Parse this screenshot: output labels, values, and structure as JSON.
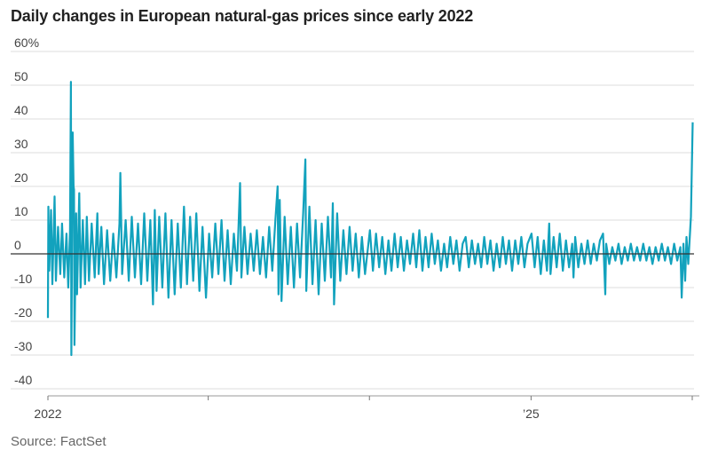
{
  "header": {
    "title": "Daily changes in European natural-gas prices since early 2022"
  },
  "footer": {
    "source": "Source: FactSet"
  },
  "colors": {
    "line": "#12a2bd",
    "grid": "#dcdcdc",
    "zero": "#333333",
    "text": "#444444"
  },
  "chart_data": {
    "type": "line",
    "title": "Daily changes in European natural-gas prices since early 2022",
    "xlabel": "",
    "ylabel": "",
    "ylim": [
      -40,
      60
    ],
    "y_ticks": [
      -40,
      -30,
      -20,
      -10,
      0,
      10,
      20,
      30,
      40,
      50,
      60
    ],
    "y_tick_labels": [
      "-40",
      "-30",
      "-20",
      "-10",
      "0",
      "10",
      "20",
      "30",
      "40",
      "50",
      "60%"
    ],
    "x_tick_labels": [
      {
        "label": "2022",
        "date": "2022-01-03"
      },
      {
        "label": "’25",
        "date": "2025-01-01"
      }
    ],
    "xlim": [
      "2022-01-03",
      "2026-01-05"
    ],
    "x_tick_marks": [
      "2022-01-03",
      "2023-01-01",
      "2024-01-01",
      "2025-01-01",
      "2026-01-01"
    ],
    "grid": true,
    "series": [
      {
        "values_note_unit": "percent",
        "points": [
          [
            "2022-01-03",
            -19
          ],
          [
            "2022-01-04",
            14
          ],
          [
            "2022-01-06",
            -5
          ],
          [
            "2022-01-10",
            13
          ],
          [
            "2022-01-13",
            -9
          ],
          [
            "2022-01-18",
            17
          ],
          [
            "2022-01-21",
            -8
          ],
          [
            "2022-01-26",
            8
          ],
          [
            "2022-01-31",
            -6
          ],
          [
            "2022-02-04",
            9
          ],
          [
            "2022-02-09",
            -7
          ],
          [
            "2022-02-14",
            6
          ],
          [
            "2022-02-18",
            -10
          ],
          [
            "2022-02-22",
            7
          ],
          [
            "2022-02-24",
            51
          ],
          [
            "2022-02-25",
            -30
          ],
          [
            "2022-02-28",
            36
          ],
          [
            "2022-03-02",
            20
          ],
          [
            "2022-03-03",
            19
          ],
          [
            "2022-03-04",
            -27
          ],
          [
            "2022-03-08",
            12
          ],
          [
            "2022-03-10",
            -12
          ],
          [
            "2022-03-15",
            18
          ],
          [
            "2022-03-18",
            -10
          ],
          [
            "2022-03-23",
            10
          ],
          [
            "2022-03-28",
            -9
          ],
          [
            "2022-04-01",
            11
          ],
          [
            "2022-04-06",
            -8
          ],
          [
            "2022-04-12",
            9
          ],
          [
            "2022-04-19",
            -7
          ],
          [
            "2022-04-25",
            12
          ],
          [
            "2022-04-28",
            -6
          ],
          [
            "2022-05-04",
            8
          ],
          [
            "2022-05-10",
            -9
          ],
          [
            "2022-05-17",
            7
          ],
          [
            "2022-05-24",
            -8
          ],
          [
            "2022-05-31",
            6
          ],
          [
            "2022-06-07",
            -7
          ],
          [
            "2022-06-14",
            9
          ],
          [
            "2022-06-16",
            24
          ],
          [
            "2022-06-20",
            -6
          ],
          [
            "2022-06-28",
            10
          ],
          [
            "2022-07-05",
            -8
          ],
          [
            "2022-07-12",
            11
          ],
          [
            "2022-07-19",
            -7
          ],
          [
            "2022-07-26",
            9
          ],
          [
            "2022-08-02",
            -9
          ],
          [
            "2022-08-09",
            12
          ],
          [
            "2022-08-16",
            -8
          ],
          [
            "2022-08-23",
            10
          ],
          [
            "2022-08-29",
            -15
          ],
          [
            "2022-09-02",
            13
          ],
          [
            "2022-09-06",
            -11
          ],
          [
            "2022-09-12",
            11
          ],
          [
            "2022-09-19",
            -10
          ],
          [
            "2022-09-26",
            12
          ],
          [
            "2022-10-03",
            -13
          ],
          [
            "2022-10-10",
            10
          ],
          [
            "2022-10-17",
            -12
          ],
          [
            "2022-10-24",
            9
          ],
          [
            "2022-10-31",
            -10
          ],
          [
            "2022-11-07",
            14
          ],
          [
            "2022-11-14",
            -9
          ],
          [
            "2022-11-21",
            11
          ],
          [
            "2022-11-28",
            -8
          ],
          [
            "2022-12-05",
            12
          ],
          [
            "2022-12-12",
            -11
          ],
          [
            "2022-12-19",
            8
          ],
          [
            "2022-12-27",
            -13
          ],
          [
            "2023-01-03",
            6
          ],
          [
            "2023-01-10",
            -7
          ],
          [
            "2023-01-17",
            9
          ],
          [
            "2023-01-24",
            -6
          ],
          [
            "2023-01-31",
            10
          ],
          [
            "2023-02-07",
            -8
          ],
          [
            "2023-02-14",
            7
          ],
          [
            "2023-02-21",
            -9
          ],
          [
            "2023-02-28",
            6
          ],
          [
            "2023-03-07",
            -5
          ],
          [
            "2023-03-14",
            21
          ],
          [
            "2023-03-17",
            -7
          ],
          [
            "2023-03-24",
            8
          ],
          [
            "2023-03-31",
            -6
          ],
          [
            "2023-04-07",
            6
          ],
          [
            "2023-04-14",
            -5
          ],
          [
            "2023-04-21",
            7
          ],
          [
            "2023-04-28",
            -6
          ],
          [
            "2023-05-05",
            5
          ],
          [
            "2023-05-12",
            -7
          ],
          [
            "2023-05-19",
            8
          ],
          [
            "2023-05-26",
            -5
          ],
          [
            "2023-06-02",
            10
          ],
          [
            "2023-06-07",
            20
          ],
          [
            "2023-06-09",
            -12
          ],
          [
            "2023-06-12",
            16
          ],
          [
            "2023-06-16",
            -14
          ],
          [
            "2023-06-23",
            11
          ],
          [
            "2023-06-30",
            -9
          ],
          [
            "2023-07-07",
            8
          ],
          [
            "2023-07-14",
            -10
          ],
          [
            "2023-07-21",
            9
          ],
          [
            "2023-07-28",
            -7
          ],
          [
            "2023-08-04",
            12
          ],
          [
            "2023-08-09",
            28
          ],
          [
            "2023-08-11",
            -11
          ],
          [
            "2023-08-18",
            14
          ],
          [
            "2023-08-25",
            -9
          ],
          [
            "2023-09-01",
            10
          ],
          [
            "2023-09-08",
            -12
          ],
          [
            "2023-09-15",
            9
          ],
          [
            "2023-09-22",
            -8
          ],
          [
            "2023-09-29",
            11
          ],
          [
            "2023-10-06",
            -7
          ],
          [
            "2023-10-10",
            15
          ],
          [
            "2023-10-13",
            -15
          ],
          [
            "2023-10-20",
            12
          ],
          [
            "2023-10-27",
            -8
          ],
          [
            "2023-11-03",
            7
          ],
          [
            "2023-11-10",
            -6
          ],
          [
            "2023-11-17",
            8
          ],
          [
            "2023-11-24",
            -5
          ],
          [
            "2023-12-01",
            6
          ],
          [
            "2023-12-08",
            -7
          ],
          [
            "2023-12-15",
            5
          ],
          [
            "2023-12-22",
            -6
          ],
          [
            "2024-01-02",
            7
          ],
          [
            "2024-01-09",
            -5
          ],
          [
            "2024-01-16",
            6
          ],
          [
            "2024-01-23",
            -4
          ],
          [
            "2024-01-30",
            5
          ],
          [
            "2024-02-06",
            -6
          ],
          [
            "2024-02-13",
            4
          ],
          [
            "2024-02-20",
            -5
          ],
          [
            "2024-02-27",
            6
          ],
          [
            "2024-03-05",
            -4
          ],
          [
            "2024-03-12",
            5
          ],
          [
            "2024-03-19",
            -5
          ],
          [
            "2024-03-26",
            4
          ],
          [
            "2024-04-02",
            -3
          ],
          [
            "2024-04-09",
            6
          ],
          [
            "2024-04-16",
            -4
          ],
          [
            "2024-04-23",
            7
          ],
          [
            "2024-04-30",
            -5
          ],
          [
            "2024-05-07",
            5
          ],
          [
            "2024-05-14",
            -4
          ],
          [
            "2024-05-21",
            6
          ],
          [
            "2024-05-28",
            -3
          ],
          [
            "2024-06-04",
            4
          ],
          [
            "2024-06-11",
            -5
          ],
          [
            "2024-06-18",
            3
          ],
          [
            "2024-06-25",
            -4
          ],
          [
            "2024-07-02",
            5
          ],
          [
            "2024-07-09",
            -3
          ],
          [
            "2024-07-16",
            4
          ],
          [
            "2024-07-23",
            -5
          ],
          [
            "2024-07-30",
            3
          ],
          [
            "2024-08-06",
            5
          ],
          [
            "2024-08-13",
            -4
          ],
          [
            "2024-08-20",
            4
          ],
          [
            "2024-08-27",
            -3
          ],
          [
            "2024-09-03",
            3
          ],
          [
            "2024-09-10",
            -4
          ],
          [
            "2024-09-17",
            5
          ],
          [
            "2024-09-24",
            -3
          ],
          [
            "2024-10-01",
            4
          ],
          [
            "2024-10-08",
            -5
          ],
          [
            "2024-10-15",
            3
          ],
          [
            "2024-10-22",
            -4
          ],
          [
            "2024-10-29",
            5
          ],
          [
            "2024-11-05",
            -3
          ],
          [
            "2024-11-12",
            4
          ],
          [
            "2024-11-19",
            -5
          ],
          [
            "2024-11-26",
            4
          ],
          [
            "2024-12-03",
            -3
          ],
          [
            "2024-12-10",
            5
          ],
          [
            "2024-12-17",
            -4
          ],
          [
            "2024-12-24",
            3
          ],
          [
            "2025-01-02",
            6
          ],
          [
            "2025-01-09",
            -4
          ],
          [
            "2025-01-16",
            5
          ],
          [
            "2025-01-23",
            -6
          ],
          [
            "2025-01-30",
            4
          ],
          [
            "2025-02-06",
            -5
          ],
          [
            "2025-02-11",
            9
          ],
          [
            "2025-02-14",
            -6
          ],
          [
            "2025-02-21",
            5
          ],
          [
            "2025-02-28",
            -4
          ],
          [
            "2025-03-07",
            6
          ],
          [
            "2025-03-14",
            -5
          ],
          [
            "2025-03-21",
            4
          ],
          [
            "2025-03-28",
            -4
          ],
          [
            "2025-04-04",
            3
          ],
          [
            "2025-04-07",
            -7
          ],
          [
            "2025-04-11",
            5
          ],
          [
            "2025-04-18",
            -4
          ],
          [
            "2025-04-25",
            3
          ],
          [
            "2025-05-02",
            -3
          ],
          [
            "2025-05-09",
            4
          ],
          [
            "2025-05-16",
            -3
          ],
          [
            "2025-05-23",
            3
          ],
          [
            "2025-05-30",
            -2
          ],
          [
            "2025-06-06",
            4
          ],
          [
            "2025-06-13",
            6
          ],
          [
            "2025-06-18",
            -12
          ],
          [
            "2025-06-20",
            3
          ],
          [
            "2025-06-27",
            -3
          ],
          [
            "2025-07-04",
            2
          ],
          [
            "2025-07-11",
            -2
          ],
          [
            "2025-07-18",
            3
          ],
          [
            "2025-07-25",
            -3
          ],
          [
            "2025-08-01",
            2
          ],
          [
            "2025-08-08",
            -2
          ],
          [
            "2025-08-15",
            3
          ],
          [
            "2025-08-22",
            -2
          ],
          [
            "2025-08-29",
            2
          ],
          [
            "2025-09-05",
            -2
          ],
          [
            "2025-09-12",
            3
          ],
          [
            "2025-09-19",
            -2
          ],
          [
            "2025-09-26",
            2
          ],
          [
            "2025-10-03",
            -3
          ],
          [
            "2025-10-10",
            2
          ],
          [
            "2025-10-17",
            -2
          ],
          [
            "2025-10-24",
            3
          ],
          [
            "2025-10-31",
            -2
          ],
          [
            "2025-11-07",
            2
          ],
          [
            "2025-11-14",
            -3
          ],
          [
            "2025-11-21",
            3
          ],
          [
            "2025-11-28",
            -2
          ],
          [
            "2025-12-05",
            2
          ],
          [
            "2025-12-08",
            -13
          ],
          [
            "2025-12-12",
            3
          ],
          [
            "2025-12-16",
            -8
          ],
          [
            "2025-12-19",
            5
          ],
          [
            "2025-12-23",
            -3
          ],
          [
            "2025-12-29",
            11
          ],
          [
            "2026-01-02",
            39
          ]
        ]
      }
    ]
  }
}
